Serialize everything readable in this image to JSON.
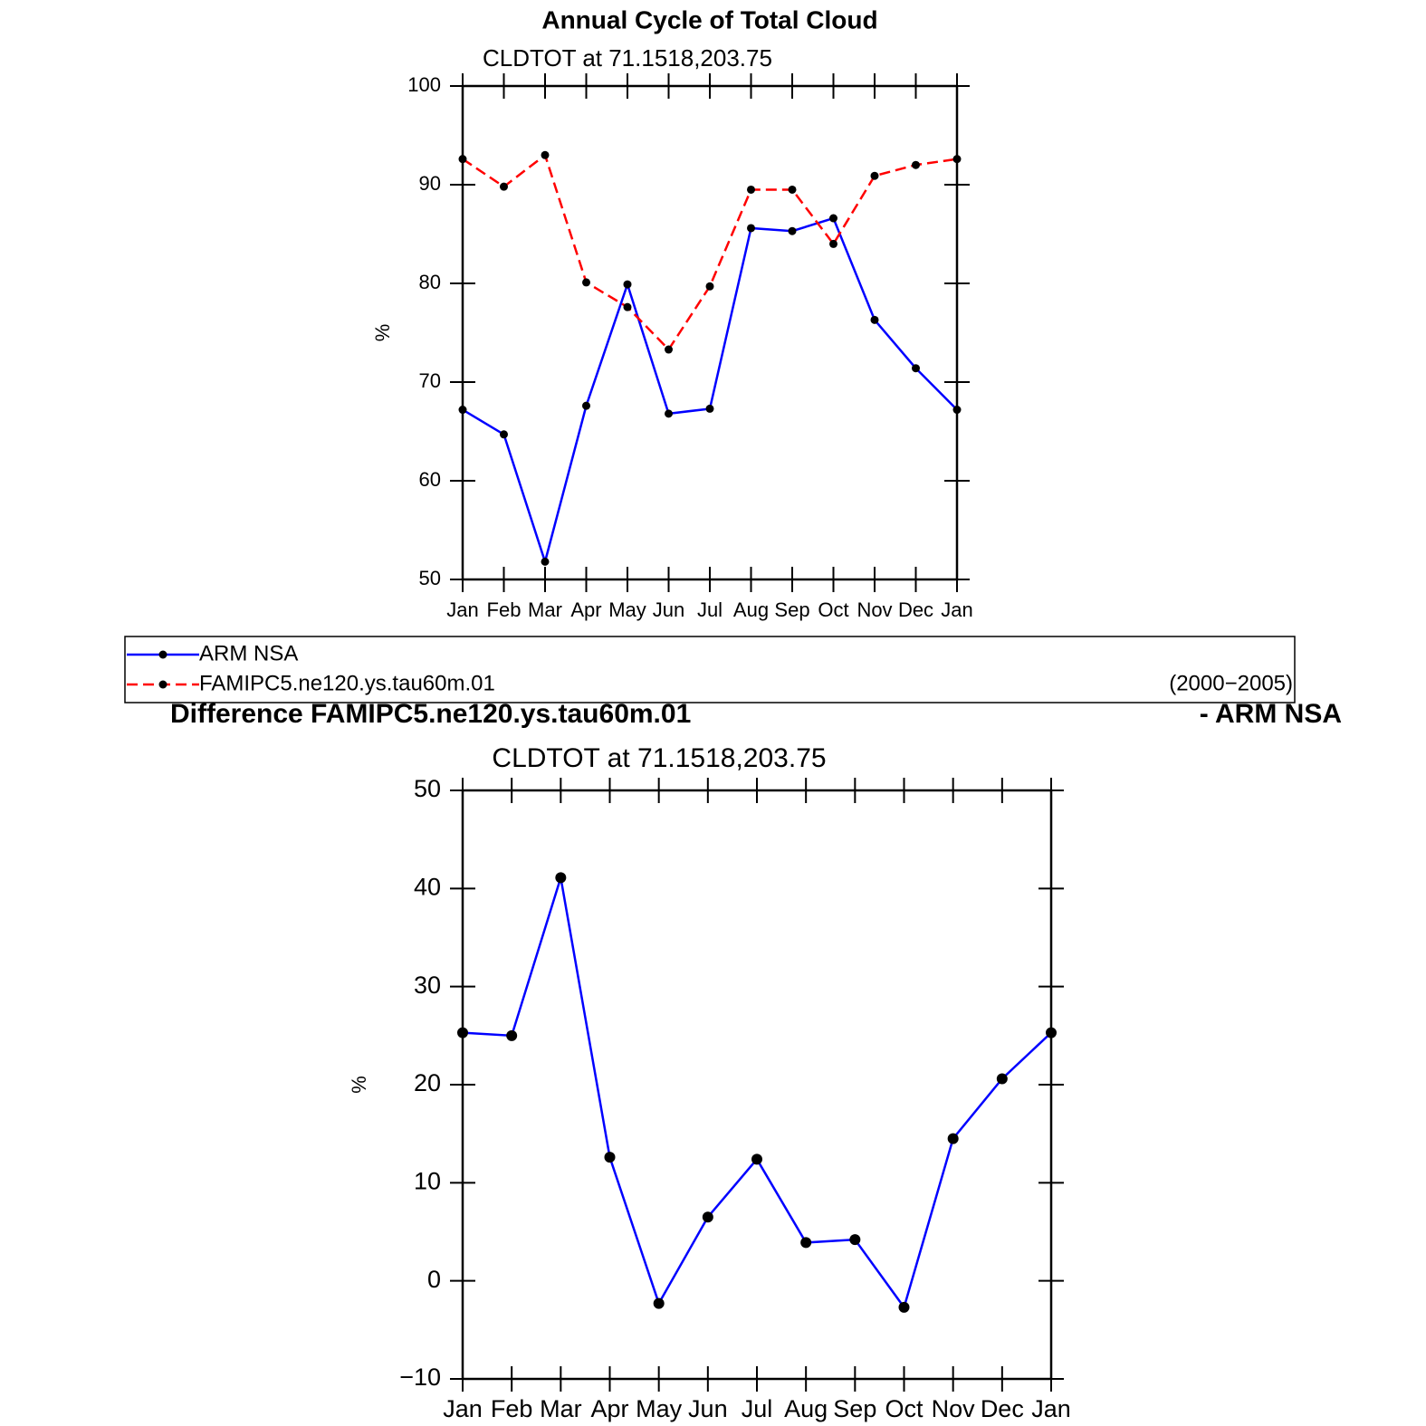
{
  "chart_data": [
    {
      "type": "line",
      "title": "Annual Cycle of Total Cloud",
      "subtitle": "CLDTOT at 71.1518,203.75",
      "y_label": "%",
      "categories": [
        "Jan",
        "Feb",
        "Mar",
        "Apr",
        "May",
        "Jun",
        "Jul",
        "Aug",
        "Sep",
        "Oct",
        "Nov",
        "Dec",
        "Jan"
      ],
      "series": [
        {
          "name": "ARM NSA",
          "color": "#0000ff",
          "dash": "solid",
          "values": [
            67.2,
            64.7,
            51.8,
            67.6,
            79.9,
            66.8,
            67.3,
            85.6,
            85.3,
            86.6,
            76.3,
            71.4,
            67.2
          ]
        },
        {
          "name": "FAMIPC5.ne120.ys.tau60m.01",
          "color": "#ff0000",
          "dash": "dashed",
          "values": [
            92.6,
            89.8,
            93.0,
            80.1,
            77.6,
            73.3,
            79.7,
            89.5,
            89.5,
            84.0,
            90.9,
            92.0,
            92.6
          ]
        }
      ],
      "legend_note": "(2000−2005)",
      "ylim": [
        50,
        100
      ],
      "yticks": [
        50,
        60,
        70,
        80,
        90,
        100
      ]
    },
    {
      "type": "line",
      "title": [
        "Difference FAMIPC5.ne120.ys.tau60m.01",
        "- ARM NSA"
      ],
      "subtitle": "CLDTOT at 71.1518,203.75",
      "y_label": "%",
      "categories": [
        "Jan",
        "Feb",
        "Mar",
        "Apr",
        "May",
        "Jun",
        "Jul",
        "Aug",
        "Sep",
        "Oct",
        "Nov",
        "Dec",
        "Jan"
      ],
      "series": [
        {
          "name": null,
          "color": "#0000ff",
          "dash": "solid",
          "values": [
            25.3,
            25.0,
            41.1,
            12.6,
            -2.3,
            6.5,
            12.4,
            3.9,
            4.2,
            -2.7,
            14.5,
            20.6,
            25.3
          ]
        }
      ],
      "ylim": [
        -10,
        50
      ],
      "yticks": [
        {
          "value": -10,
          "label": "−10"
        },
        0,
        10,
        20,
        30,
        40,
        50
      ]
    }
  ]
}
